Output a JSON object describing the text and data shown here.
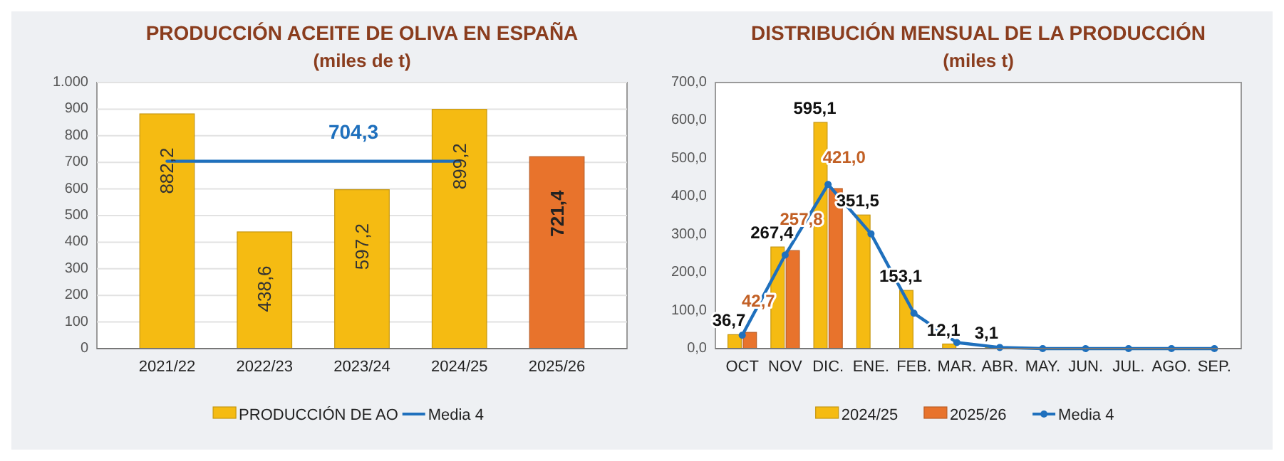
{
  "chart_data": [
    {
      "type": "bar",
      "title": "PRODUCCIÓN ACEITE DE OLIVA EN ESPAÑA",
      "subtitle": "(miles de t)",
      "categories": [
        "2021/22",
        "2022/23",
        "2023/24",
        "2024/25",
        "2025/26"
      ],
      "series": [
        {
          "name": "PRODUCCIÓN DE AO",
          "color": "#f5bb12",
          "colors": [
            "#f5bb12",
            "#f5bb12",
            "#f5bb12",
            "#f5bb12",
            "#e8732c"
          ],
          "values": [
            882.2,
            438.6,
            597.2,
            899.2,
            721.4
          ],
          "value_labels": [
            "882,2",
            "438,6",
            "597,2",
            "899,2",
            "721,4"
          ]
        },
        {
          "name": "Media 4",
          "type": "line",
          "color": "#1f70bd",
          "values": [
            704.3,
            704.3,
            704.3,
            704.3,
            null
          ],
          "value_labels": [
            null,
            null,
            "704,3",
            null,
            null
          ]
        }
      ],
      "ylim": [
        0,
        1000
      ],
      "yticks": [
        0,
        100,
        200,
        300,
        400,
        500,
        600,
        700,
        800,
        900,
        {
          "value": 1000,
          "label": "1.000"
        }
      ],
      "grid": "y",
      "legend": "bottom"
    },
    {
      "type": "bar",
      "title": "DISTRIBUCIÓN MENSUAL DE LA PRODUCCIÓN",
      "subtitle": "(miles t)",
      "categories": [
        "OCT",
        "NOV",
        "DIC.",
        "ENE.",
        "FEB.",
        "MAR.",
        "ABR.",
        "MAY.",
        "JUN.",
        "JUL.",
        "AGO.",
        "SEP."
      ],
      "series": [
        {
          "name": "2024/25",
          "color": "#f5bb12",
          "values": [
            36.7,
            267.4,
            595.1,
            351.5,
            153.1,
            12.1,
            3.1,
            null,
            null,
            null,
            null,
            null
          ],
          "value_labels": [
            "36,7",
            "267,4",
            "595,1",
            "351,5",
            "153,1",
            "12,1",
            "3,1",
            null,
            null,
            null,
            null,
            null
          ]
        },
        {
          "name": "2025/26",
          "color": "#e8732c",
          "values": [
            42.7,
            257.8,
            421.0,
            null,
            null,
            null,
            null,
            null,
            null,
            null,
            null,
            null
          ],
          "value_labels": [
            "42,7",
            "257,8",
            "421,0",
            null,
            null,
            null,
            null,
            null,
            null,
            null,
            null,
            null
          ]
        },
        {
          "name": "Media 4",
          "type": "line",
          "color": "#1f70bd",
          "values": [
            35,
            246,
            432,
            302,
            93,
            16,
            3,
            0,
            0,
            0,
            0,
            0
          ]
        }
      ],
      "ylim": [
        0,
        700
      ],
      "yticks": [
        {
          "value": 0,
          "label": "0,0"
        },
        {
          "value": 100,
          "label": "100,0"
        },
        {
          "value": 200,
          "label": "200,0"
        },
        {
          "value": 300,
          "label": "300,0"
        },
        {
          "value": 400,
          "label": "400,0"
        },
        {
          "value": 500,
          "label": "500,0"
        },
        {
          "value": 600,
          "label": "600,0"
        },
        {
          "value": 700,
          "label": "700,0"
        }
      ],
      "marker": "circle",
      "legend": "bottom"
    }
  ]
}
